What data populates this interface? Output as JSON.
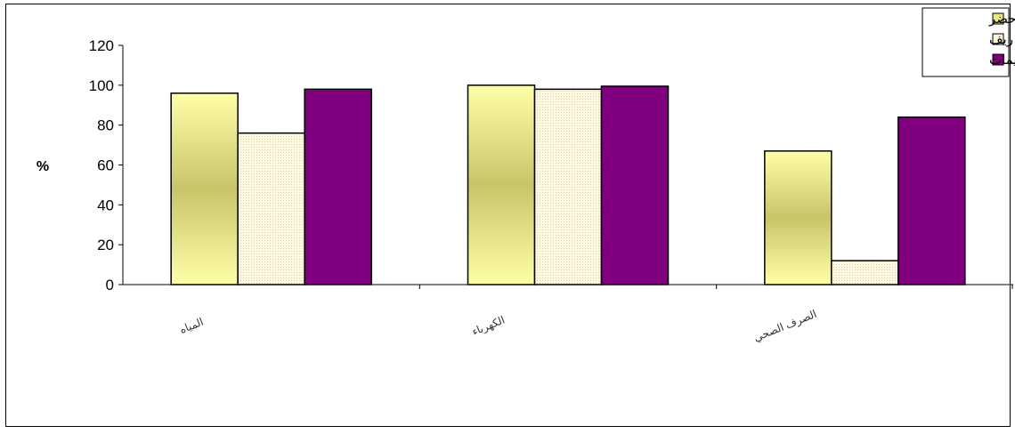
{
  "chart_data": {
    "type": "bar",
    "title": "",
    "xlabel": "",
    "ylabel": "%",
    "ylim": [
      0,
      120
    ],
    "yticks": [
      0,
      20,
      40,
      60,
      80,
      100,
      120
    ],
    "categories": [
      "المياه",
      "الكهرباء",
      "الصرف الصحي"
    ],
    "series": [
      {
        "name": "حضر",
        "values": [
          96,
          100,
          67
        ],
        "color": "#e6e685",
        "pattern": "gradient"
      },
      {
        "name": "ريف",
        "values": [
          76,
          98,
          12
        ],
        "color": "#fbf5d6",
        "pattern": "dots"
      },
      {
        "name": "مخيمات",
        "values": [
          98,
          99.5,
          84
        ],
        "color": "#800080",
        "pattern": "solid"
      }
    ],
    "legend_position": "top-right",
    "grid": false
  }
}
